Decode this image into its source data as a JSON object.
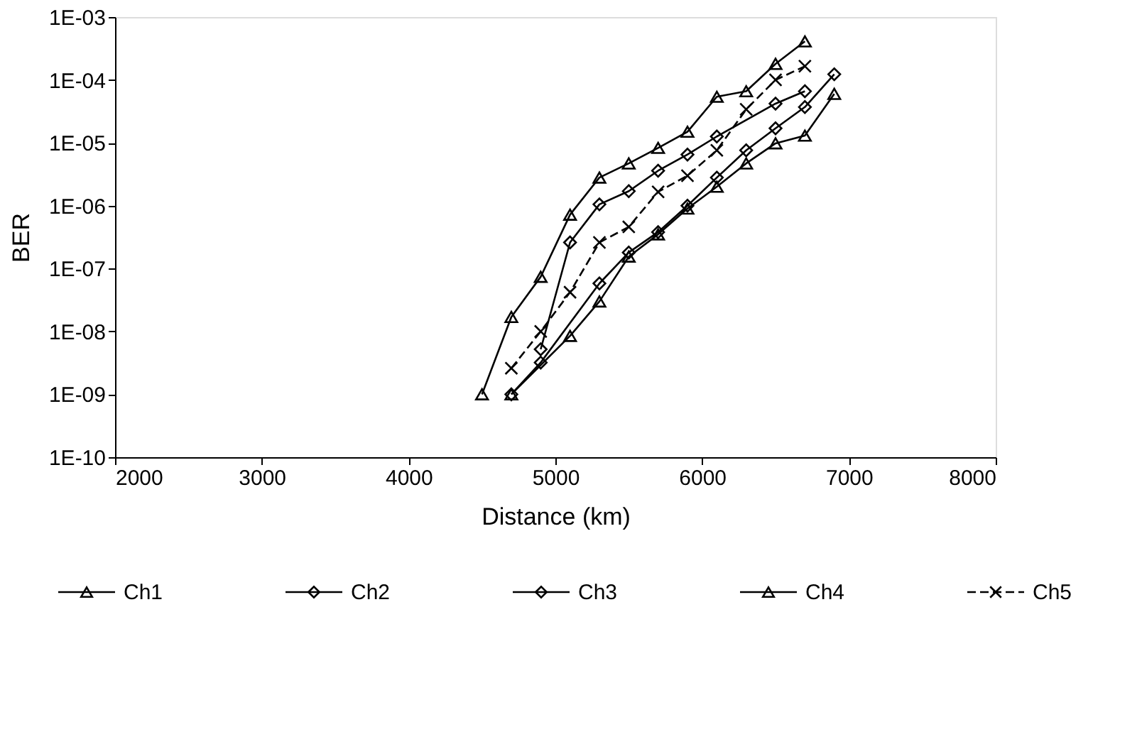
{
  "chart_data": {
    "type": "line",
    "xlabel": "Distance (km)",
    "ylabel": "BER",
    "xlim": [
      2000,
      8000
    ],
    "xticks": [
      2000,
      3000,
      4000,
      5000,
      6000,
      7000,
      8000
    ],
    "ylim": [
      1e-10,
      0.001
    ],
    "yticks": [
      {
        "value": 1e-10,
        "label": "1E-10"
      },
      {
        "value": 1e-09,
        "label": "1E-09"
      },
      {
        "value": 1e-08,
        "label": "1E-08"
      },
      {
        "value": 1e-07,
        "label": "1E-07"
      },
      {
        "value": 1e-06,
        "label": "1E-06"
      },
      {
        "value": 1e-05,
        "label": "1E-05"
      },
      {
        "value": 0.0001,
        "label": "1E-04"
      },
      {
        "value": 0.001,
        "label": "1E-03"
      }
    ],
    "log": "y",
    "grid": false,
    "legend": "bottom",
    "series": [
      {
        "name": "Ch1",
        "color": "#000000",
        "marker": "triangle",
        "line_style": "solid",
        "x": [
          4500,
          4700,
          4900,
          5100,
          5300,
          5500,
          5700,
          5900,
          6100,
          6300,
          6500,
          6700
        ],
        "values": [
          1e-09,
          1.7e-08,
          7.4e-08,
          7.2e-07,
          2.8e-06,
          4.7e-06,
          8.3e-06,
          1.5e-05,
          5.4e-05,
          6.6e-05,
          0.00018,
          0.00041
        ]
      },
      {
        "name": "Ch2",
        "color": "#000000",
        "marker": "diamond",
        "line_style": "solid",
        "x": [
          4700,
          4900,
          5300,
          5500,
          5700,
          5900,
          6100,
          6300,
          6500,
          6700,
          6900
        ],
        "values": [
          1e-09,
          3.2e-09,
          5.8e-08,
          1.8e-07,
          3.8e-07,
          1e-06,
          2.8e-06,
          7.6e-06,
          1.7e-05,
          3.7e-05,
          0.000123
        ]
      },
      {
        "name": "Ch3",
        "color": "#000000",
        "marker": "diamond",
        "line_style": "solid",
        "x": [
          4900,
          5100,
          5300,
          5500,
          5700,
          5900,
          6100,
          6500,
          6700
        ],
        "values": [
          5.2e-09,
          2.6e-07,
          1.05e-06,
          1.7e-06,
          3.6e-06,
          6.5e-06,
          1.26e-05,
          4.2e-05,
          6.6e-05
        ]
      },
      {
        "name": "Ch4",
        "color": "#000000",
        "marker": "triangle",
        "line_style": "solid",
        "x": [
          4700,
          5100,
          5300,
          5500,
          5700,
          5900,
          6100,
          6300,
          6500,
          6700,
          6900
        ],
        "values": [
          1e-09,
          8.5e-09,
          3e-08,
          1.55e-07,
          3.5e-07,
          9e-07,
          2e-06,
          4.7e-06,
          9.8e-06,
          1.3e-05,
          6e-05
        ]
      },
      {
        "name": "Ch5",
        "color": "#000000",
        "marker": "cross",
        "line_style": "dashed",
        "x": [
          4700,
          4900,
          5100,
          5300,
          5500,
          5700,
          5900,
          6100,
          6300,
          6500,
          6700
        ],
        "values": [
          2.6e-09,
          1e-08,
          4.2e-08,
          2.6e-07,
          4.6e-07,
          1.66e-06,
          3e-06,
          7.6e-06,
          3.4e-05,
          0.0001,
          0.000165
        ]
      }
    ]
  }
}
